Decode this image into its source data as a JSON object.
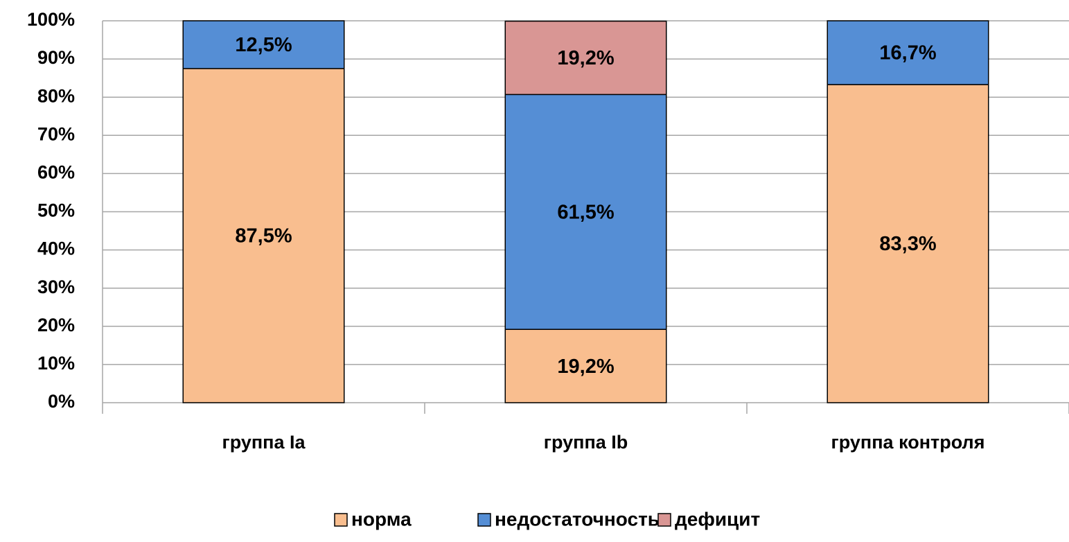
{
  "chart_data": {
    "type": "stacked_bar",
    "categories": [
      "группа Ia",
      "группа Ib",
      "группа контроля"
    ],
    "series": [
      {
        "name": "норма",
        "color": "#f9be8f",
        "values": [
          87.5,
          19.2,
          83.3
        ],
        "value_labels": [
          "87,5%",
          "19,2%",
          "83,3%"
        ]
      },
      {
        "name": "недостаточность",
        "color": "#558ed5",
        "values": [
          12.5,
          61.5,
          16.7
        ],
        "value_labels": [
          "12,5%",
          "61,5%",
          "16,7%"
        ]
      },
      {
        "name": "дефицит",
        "color": "#d99694",
        "values": [
          null,
          19.2,
          null
        ],
        "value_labels": [
          null,
          "19,2%",
          null
        ]
      }
    ],
    "ylim": [
      0,
      100
    ],
    "yticks": [
      {
        "value": 0,
        "label": "0%"
      },
      {
        "value": 10,
        "label": "10%"
      },
      {
        "value": 20,
        "label": "20%"
      },
      {
        "value": 30,
        "label": "30%"
      },
      {
        "value": 40,
        "label": "40%"
      },
      {
        "value": 50,
        "label": "50%"
      },
      {
        "value": 60,
        "label": "60%"
      },
      {
        "value": 70,
        "label": "70%"
      },
      {
        "value": 80,
        "label": "80%"
      },
      {
        "value": 90,
        "label": "90%"
      },
      {
        "value": 100,
        "label": "100%"
      }
    ],
    "grid": true,
    "legend": "bottom"
  }
}
